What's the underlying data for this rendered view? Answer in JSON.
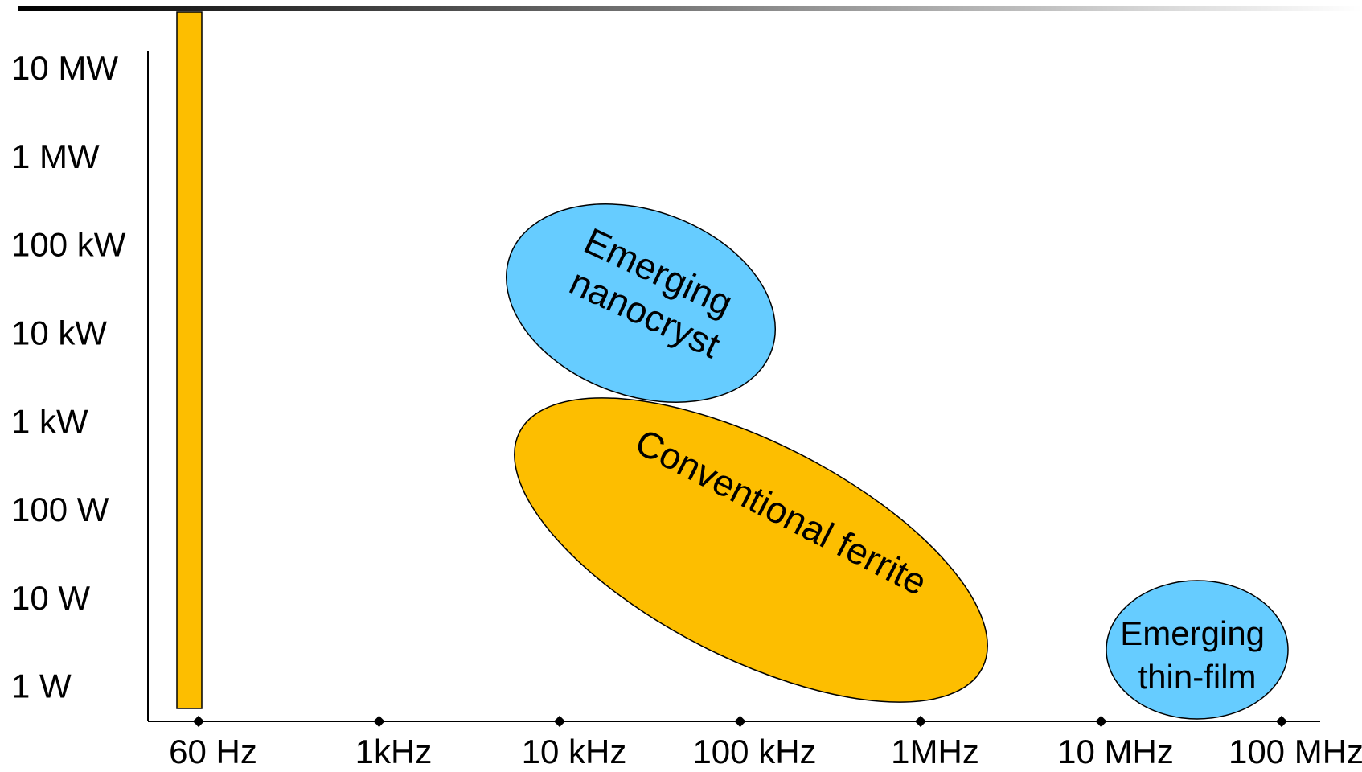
{
  "chart_data": {
    "type": "diagram",
    "title": "",
    "xlabel": "",
    "ylabel": "",
    "x_axis": {
      "scale": "log",
      "ticks": [
        "60 Hz",
        "1kHz",
        "10 kHz",
        "100 kHz",
        "1MHz",
        "10 MHz",
        "100 MHz"
      ]
    },
    "y_axis": {
      "scale": "log",
      "ticks": [
        "10 MW",
        "1 MW",
        "100 kW",
        "10 kW",
        "1 kW",
        "100 W",
        "10 W",
        "1 W"
      ]
    },
    "regions": [
      {
        "id": "laminated-steel-band",
        "shape": "bar",
        "label": "",
        "frequency": "60 Hz",
        "power_range": [
          "1 W",
          "10 MW"
        ]
      },
      {
        "id": "nanocryst",
        "shape": "ellipse",
        "label_lines": [
          "Emerging",
          "nanocryst"
        ]
      },
      {
        "id": "ferrite",
        "shape": "ellipse",
        "label_lines": [
          "Conventional ferrite"
        ]
      },
      {
        "id": "thin-film",
        "shape": "ellipse",
        "label_lines": [
          "Emerging",
          "thin-film"
        ]
      }
    ],
    "colors": {
      "orange": "#FDBE00",
      "blue": "#66CCFF",
      "axis": "#000000"
    },
    "grid": false,
    "legend": "none"
  }
}
